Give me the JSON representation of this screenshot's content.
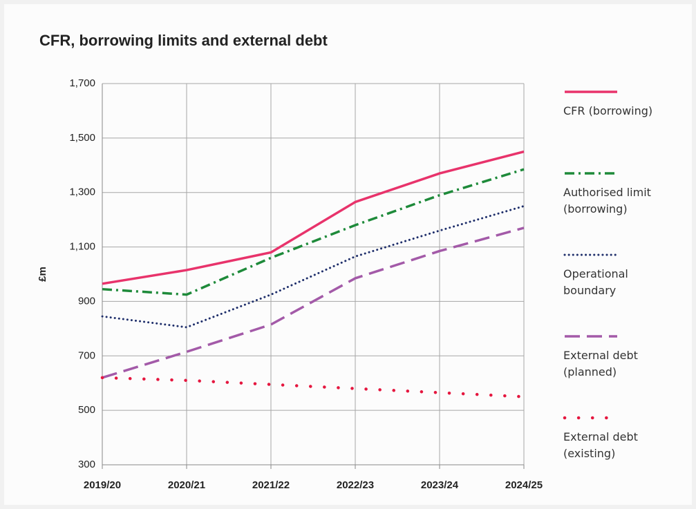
{
  "chart_data": {
    "type": "line",
    "title": "CFR, borrowing limits and external debt",
    "ylabel": "£m",
    "categories": [
      "2019/20",
      "2020/21",
      "2021/22",
      "2022/23",
      "2023/24",
      "2024/25"
    ],
    "series": [
      {
        "name": "CFR (borrowing)",
        "color": "#e8336b",
        "line_style": "solid",
        "values": [
          965,
          1015,
          1080,
          1265,
          1370,
          1450
        ]
      },
      {
        "name": "Authorised limit (borrowing)",
        "color": "#1e8a3a",
        "line_style": "dashdot",
        "values": [
          945,
          925,
          1060,
          1180,
          1290,
          1385
        ]
      },
      {
        "name": "Operational boundary",
        "color": "#1f2f6b",
        "line_style": "dotted",
        "values": [
          845,
          805,
          925,
          1065,
          1160,
          1250
        ]
      },
      {
        "name": "External debt (planned)",
        "color": "#a35aa8",
        "line_style": "dashed",
        "values": [
          620,
          715,
          815,
          985,
          1085,
          1170
        ]
      },
      {
        "name": "External debt (existing)",
        "color": "#e5173f",
        "line_style": "sparse-dotted",
        "values": [
          620,
          610,
          595,
          580,
          565,
          550
        ]
      }
    ],
    "ylim": [
      300,
      1700
    ],
    "yticks": [
      300,
      500,
      700,
      900,
      {
        "value": 1100,
        "label": "1,100"
      },
      {
        "value": 1300,
        "label": "1,300"
      },
      {
        "value": 1500,
        "label": "1,500"
      },
      {
        "value": 1700,
        "label": "1,700"
      }
    ],
    "grid": true,
    "legend": "right"
  }
}
